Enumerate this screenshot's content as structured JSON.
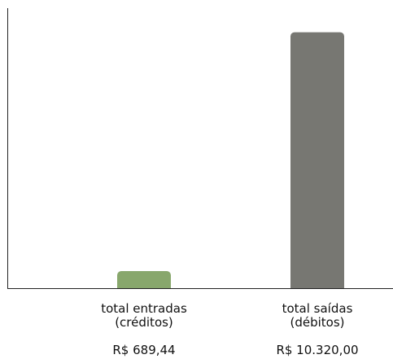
{
  "chart_data": {
    "type": "bar",
    "title": "",
    "xlabel": "",
    "ylabel": "",
    "ylim": [
      0,
      10700
    ],
    "grid": false,
    "legend": "none",
    "categories": [
      {
        "line1": "total entradas",
        "line2": "(créditos)"
      },
      {
        "line1": "total saídas",
        "line2": "(débitos)"
      }
    ],
    "values": [
      689.44,
      10320.0
    ],
    "value_labels": [
      "R$ 689,44",
      "R$ 10.320,00"
    ],
    "colors": [
      "#88a76c",
      "#777772"
    ]
  }
}
